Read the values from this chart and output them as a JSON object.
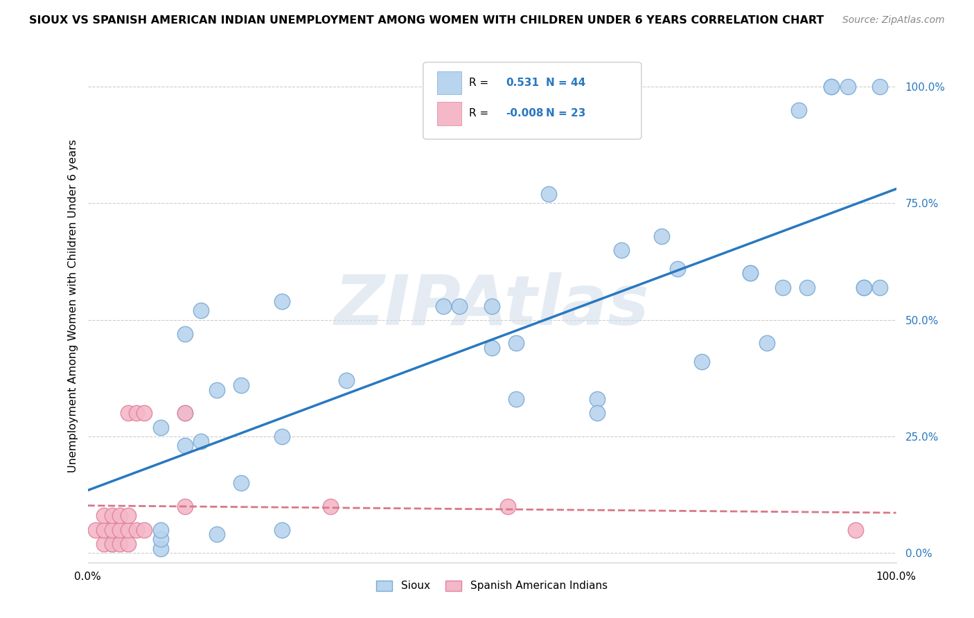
{
  "title": "SIOUX VS SPANISH AMERICAN INDIAN UNEMPLOYMENT AMONG WOMEN WITH CHILDREN UNDER 6 YEARS CORRELATION CHART",
  "source": "Source: ZipAtlas.com",
  "ylabel": "Unemployment Among Women with Children Under 6 years",
  "xlim": [
    0.0,
    1.0
  ],
  "ylim": [
    -0.02,
    1.08
  ],
  "yticks": [
    0.0,
    0.25,
    0.5,
    0.75,
    1.0
  ],
  "ytick_labels": [
    "0.0%",
    "25.0%",
    "50.0%",
    "75.0%",
    "100.0%"
  ],
  "sioux_color": "#b8d4ee",
  "sioux_edge_color": "#7aaad4",
  "spanish_color": "#f4b8c8",
  "spanish_edge_color": "#e080a0",
  "line_sioux_color": "#2878c0",
  "line_spanish_color": "#d87888",
  "sioux_R": 0.531,
  "sioux_N": 44,
  "spanish_R": -0.008,
  "spanish_N": 23,
  "legend_label_sioux": "Sioux",
  "legend_label_spanish": "Spanish American Indians",
  "watermark": "ZIPAtlas",
  "title_fontsize": 11.5,
  "source_fontsize": 10,
  "sioux_x": [
    0.03,
    0.09,
    0.09,
    0.09,
    0.09,
    0.12,
    0.12,
    0.12,
    0.14,
    0.14,
    0.16,
    0.16,
    0.19,
    0.19,
    0.24,
    0.24,
    0.24,
    0.32,
    0.44,
    0.46,
    0.5,
    0.5,
    0.53,
    0.53,
    0.57,
    0.63,
    0.63,
    0.66,
    0.71,
    0.73,
    0.76,
    0.82,
    0.82,
    0.84,
    0.86,
    0.88,
    0.89,
    0.92,
    0.92,
    0.94,
    0.96,
    0.96,
    0.98,
    0.98
  ],
  "sioux_y": [
    0.02,
    0.01,
    0.03,
    0.05,
    0.27,
    0.23,
    0.3,
    0.47,
    0.24,
    0.52,
    0.04,
    0.35,
    0.15,
    0.36,
    0.05,
    0.25,
    0.54,
    0.37,
    0.53,
    0.53,
    0.44,
    0.53,
    0.33,
    0.45,
    0.77,
    0.33,
    0.3,
    0.65,
    0.68,
    0.61,
    0.41,
    0.6,
    0.6,
    0.45,
    0.57,
    0.95,
    0.57,
    1.0,
    1.0,
    1.0,
    0.57,
    0.57,
    0.57,
    1.0
  ],
  "spanish_x": [
    0.01,
    0.02,
    0.02,
    0.02,
    0.03,
    0.03,
    0.03,
    0.04,
    0.04,
    0.04,
    0.05,
    0.05,
    0.05,
    0.05,
    0.06,
    0.06,
    0.07,
    0.07,
    0.12,
    0.12,
    0.3,
    0.52,
    0.95
  ],
  "spanish_y": [
    0.05,
    0.02,
    0.05,
    0.08,
    0.02,
    0.05,
    0.08,
    0.02,
    0.05,
    0.08,
    0.02,
    0.05,
    0.08,
    0.3,
    0.05,
    0.3,
    0.05,
    0.3,
    0.1,
    0.3,
    0.1,
    0.1,
    0.05
  ]
}
